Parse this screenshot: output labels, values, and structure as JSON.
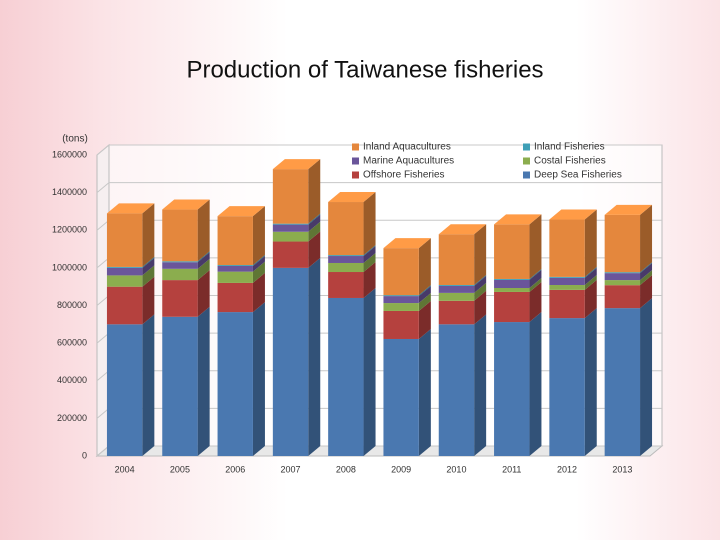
{
  "chart_data": {
    "type": "bar3d_stacked",
    "title": "Production of Taiwanese fisheries",
    "y_label": "(tons)",
    "categories": [
      "2004",
      "2005",
      "2006",
      "2007",
      "2008",
      "2009",
      "2010",
      "2011",
      "2012",
      "2013"
    ],
    "series": [
      {
        "name": "Deep Sea Fisheries",
        "color": "#4a78b0",
        "values": [
          700000,
          740000,
          765000,
          1000000,
          840000,
          622000,
          700000,
          712000,
          733000,
          786000
        ]
      },
      {
        "name": "Offshore Fisheries",
        "color": "#b5413e",
        "values": [
          200000,
          195000,
          155000,
          140000,
          138000,
          149000,
          125000,
          160000,
          150000,
          122000
        ]
      },
      {
        "name": "Costal Fisheries",
        "color": "#8bad4e",
        "values": [
          60000,
          60000,
          60000,
          52000,
          48000,
          42000,
          42000,
          21000,
          26000,
          27000
        ]
      },
      {
        "name": "Marine Aquacultures",
        "color": "#6a559a",
        "values": [
          40000,
          35000,
          30000,
          38000,
          37000,
          37000,
          37000,
          43000,
          38000,
          37000
        ]
      },
      {
        "name": "Inland Fisheries",
        "color": "#3e9fb6",
        "values": [
          5000,
          5000,
          5000,
          5000,
          5000,
          5000,
          5000,
          5000,
          5000,
          5000
        ]
      },
      {
        "name": "Inland Aquacultures",
        "color": "#e4873d",
        "values": [
          285000,
          275000,
          260000,
          290000,
          282000,
          250000,
          270000,
          290000,
          305000,
          305000
        ]
      }
    ],
    "ylim": [
      0,
      1600000
    ],
    "yticks": [
      0,
      200000,
      400000,
      600000,
      800000,
      1000000,
      1200000,
      1400000,
      1600000
    ],
    "grid": true,
    "legend": "top-right"
  }
}
